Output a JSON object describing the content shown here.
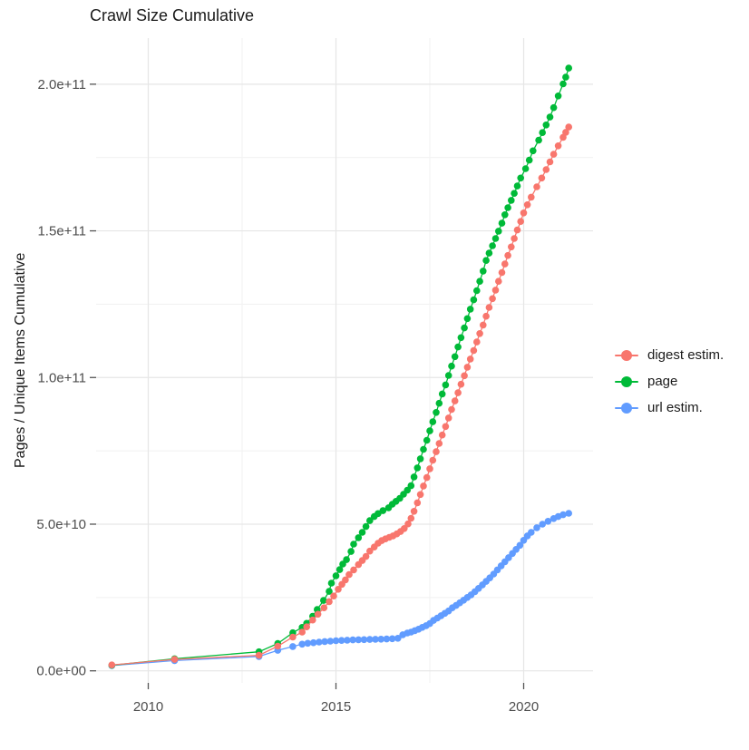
{
  "title": "Crawl Size Cumulative",
  "axes": {
    "y_title": "Pages / Unique Items Cumulative",
    "x_ticks": [
      "2010",
      "2015",
      "2020"
    ],
    "y_ticks": [
      "0.0e+00",
      "5.0e+10",
      "1.0e+11",
      "1.5e+11",
      "2.0e+11"
    ]
  },
  "legend": {
    "items": [
      {
        "label": "digest estim.",
        "color": "#F8766D"
      },
      {
        "label": "page",
        "color": "#00BA38"
      },
      {
        "label": "url estim.",
        "color": "#619CFF"
      }
    ]
  },
  "colors": {
    "digest": "#F8766D",
    "page": "#00BA38",
    "url": "#619CFF",
    "grid_major": "#e6e6e6",
    "grid_minor": "#f1f1f1",
    "tick_mark": "#555555",
    "tick_label": "#4d4d4d",
    "text": "#1a1a1a"
  },
  "chart_data": {
    "type": "line",
    "title": "Crawl Size Cumulative",
    "xlabel": "",
    "ylabel": "Pages / Unique Items Cumulative",
    "x_unit": "year",
    "value_unit": "1e9 items (pages / unique items)",
    "xlim": [
      2008.4,
      2021.9
    ],
    "ylim": [
      0,
      216000000000
    ],
    "x_major_ticks": [
      2010,
      2015,
      2020
    ],
    "x_minor_ticks": [
      2012.5,
      2017.5
    ],
    "y_major_ticks": [
      0,
      50000000000,
      100000000000,
      150000000000,
      200000000000
    ],
    "y_minor_ticks": [
      25000000000,
      75000000000,
      125000000000,
      175000000000
    ],
    "grid": "major+minor",
    "legend_position": "right",
    "series": [
      {
        "name": "digest estim.",
        "color": "#F8766D",
        "points": [
          [
            2009.03,
            2
          ],
          [
            2010.7,
            3.9
          ],
          [
            2012.95,
            5.3
          ],
          [
            2013.45,
            8.4
          ],
          [
            2013.85,
            11.5
          ],
          [
            2014.1,
            13.2
          ],
          [
            2014.22,
            15
          ],
          [
            2014.38,
            17.3
          ],
          [
            2014.52,
            19.3
          ],
          [
            2014.68,
            21.5
          ],
          [
            2014.82,
            23.6
          ],
          [
            2014.94,
            25.5
          ],
          [
            2015.06,
            27.8
          ],
          [
            2015.16,
            29.5
          ],
          [
            2015.25,
            31
          ],
          [
            2015.35,
            32.8
          ],
          [
            2015.47,
            34.4
          ],
          [
            2015.6,
            36.2
          ],
          [
            2015.7,
            37.6
          ],
          [
            2015.8,
            39
          ],
          [
            2015.9,
            40.8
          ],
          [
            2016.02,
            42.2
          ],
          [
            2016.12,
            43.5
          ],
          [
            2016.22,
            44.4
          ],
          [
            2016.32,
            45
          ],
          [
            2016.42,
            45.5
          ],
          [
            2016.52,
            46
          ],
          [
            2016.62,
            46.7
          ],
          [
            2016.72,
            47.5
          ],
          [
            2016.82,
            48.5
          ],
          [
            2016.92,
            50.1
          ],
          [
            2017,
            52
          ],
          [
            2017.08,
            54.4
          ],
          [
            2017.17,
            57.3
          ],
          [
            2017.25,
            60.1
          ],
          [
            2017.33,
            63
          ],
          [
            2017.42,
            65.9
          ],
          [
            2017.5,
            68.9
          ],
          [
            2017.58,
            71.8
          ],
          [
            2017.67,
            74.7
          ],
          [
            2017.75,
            77.5
          ],
          [
            2017.83,
            80.4
          ],
          [
            2017.92,
            83.3
          ],
          [
            2018,
            86.2
          ],
          [
            2018.08,
            89.1
          ],
          [
            2018.17,
            92
          ],
          [
            2018.25,
            94.8
          ],
          [
            2018.33,
            97.7
          ],
          [
            2018.42,
            100.6
          ],
          [
            2018.5,
            103.5
          ],
          [
            2018.58,
            106.3
          ],
          [
            2018.67,
            109.2
          ],
          [
            2018.75,
            112.1
          ],
          [
            2018.83,
            115
          ],
          [
            2018.92,
            117.9
          ],
          [
            2019,
            120.9
          ],
          [
            2019.08,
            123.9
          ],
          [
            2019.17,
            126.9
          ],
          [
            2019.25,
            129.8
          ],
          [
            2019.33,
            132.8
          ],
          [
            2019.42,
            135.8
          ],
          [
            2019.5,
            138.7
          ],
          [
            2019.58,
            141.6
          ],
          [
            2019.67,
            144.5
          ],
          [
            2019.75,
            147.4
          ],
          [
            2019.83,
            150.3
          ],
          [
            2019.92,
            153.2
          ],
          [
            2020,
            156.1
          ],
          [
            2020.1,
            158.9
          ],
          [
            2020.2,
            161.5
          ],
          [
            2020.35,
            165
          ],
          [
            2020.48,
            168
          ],
          [
            2020.6,
            170.9
          ],
          [
            2020.7,
            173.5
          ],
          [
            2020.8,
            176.1
          ],
          [
            2020.92,
            179
          ],
          [
            2021.05,
            181.9
          ],
          [
            2021.12,
            183.6
          ],
          [
            2021.2,
            185.4
          ]
        ]
      },
      {
        "name": "page",
        "color": "#00BA38",
        "points": [
          [
            2009.03,
            1.9
          ],
          [
            2010.7,
            4.1
          ],
          [
            2012.95,
            6.5
          ],
          [
            2013.45,
            9.3
          ],
          [
            2013.85,
            13
          ],
          [
            2014.1,
            14.8
          ],
          [
            2014.22,
            16.2
          ],
          [
            2014.38,
            18.6
          ],
          [
            2014.5,
            20.9
          ],
          [
            2014.67,
            24
          ],
          [
            2014.82,
            27.1
          ],
          [
            2014.88,
            29.9
          ],
          [
            2015,
            32.4
          ],
          [
            2015.1,
            34.5
          ],
          [
            2015.18,
            36.4
          ],
          [
            2015.28,
            37.9
          ],
          [
            2015.4,
            40.7
          ],
          [
            2015.47,
            43.2
          ],
          [
            2015.6,
            45.4
          ],
          [
            2015.7,
            47.2
          ],
          [
            2015.8,
            49.2
          ],
          [
            2015.9,
            51.2
          ],
          [
            2016.02,
            52.6
          ],
          [
            2016.12,
            53.6
          ],
          [
            2016.25,
            54.6
          ],
          [
            2016.4,
            55.6
          ],
          [
            2016.5,
            56.8
          ],
          [
            2016.6,
            57.8
          ],
          [
            2016.7,
            58.8
          ],
          [
            2016.8,
            60.2
          ],
          [
            2016.9,
            61.6
          ],
          [
            2017,
            63.1
          ],
          [
            2017.08,
            66.1
          ],
          [
            2017.17,
            69.2
          ],
          [
            2017.25,
            72.3
          ],
          [
            2017.33,
            75.5
          ],
          [
            2017.42,
            78.6
          ],
          [
            2017.5,
            81.8
          ],
          [
            2017.58,
            84.9
          ],
          [
            2017.67,
            88.1
          ],
          [
            2017.75,
            91.2
          ],
          [
            2017.83,
            94.4
          ],
          [
            2017.92,
            97.5
          ],
          [
            2018,
            100.7
          ],
          [
            2018.08,
            103.9
          ],
          [
            2018.17,
            107.1
          ],
          [
            2018.25,
            110.4
          ],
          [
            2018.33,
            113.6
          ],
          [
            2018.42,
            116.9
          ],
          [
            2018.5,
            120.1
          ],
          [
            2018.58,
            123.3
          ],
          [
            2018.67,
            126.5
          ],
          [
            2018.75,
            129.6
          ],
          [
            2018.83,
            132.8
          ],
          [
            2018.92,
            136.3
          ],
          [
            2019,
            139.9
          ],
          [
            2019.08,
            142.4
          ],
          [
            2019.17,
            144.9
          ],
          [
            2019.25,
            147.4
          ],
          [
            2019.33,
            149.9
          ],
          [
            2019.42,
            152.6
          ],
          [
            2019.5,
            155.5
          ],
          [
            2019.58,
            157.9
          ],
          [
            2019.67,
            160.4
          ],
          [
            2019.75,
            162.8
          ],
          [
            2019.83,
            165.3
          ],
          [
            2019.92,
            168
          ],
          [
            2020.05,
            171.2
          ],
          [
            2020.15,
            174.1
          ],
          [
            2020.25,
            177.3
          ],
          [
            2020.4,
            180.9
          ],
          [
            2020.5,
            183.5
          ],
          [
            2020.6,
            186.1
          ],
          [
            2020.7,
            188.8
          ],
          [
            2020.8,
            192
          ],
          [
            2020.92,
            196
          ],
          [
            2021.05,
            200.1
          ],
          [
            2021.12,
            202.4
          ],
          [
            2021.2,
            205.5
          ]
        ]
      },
      {
        "name": "url estim.",
        "color": "#619CFF",
        "points": [
          [
            2009.03,
            1.8
          ],
          [
            2010.7,
            3.5
          ],
          [
            2012.95,
            4.9
          ],
          [
            2013.45,
            7
          ],
          [
            2013.85,
            8.3
          ],
          [
            2014.1,
            9.1
          ],
          [
            2014.25,
            9.4
          ],
          [
            2014.4,
            9.6
          ],
          [
            2014.55,
            9.8
          ],
          [
            2014.7,
            10
          ],
          [
            2014.85,
            10.1
          ],
          [
            2015,
            10.25
          ],
          [
            2015.15,
            10.35
          ],
          [
            2015.3,
            10.45
          ],
          [
            2015.45,
            10.55
          ],
          [
            2015.6,
            10.6
          ],
          [
            2015.75,
            10.65
          ],
          [
            2015.9,
            10.7
          ],
          [
            2016.05,
            10.75
          ],
          [
            2016.2,
            10.8
          ],
          [
            2016.35,
            10.85
          ],
          [
            2016.5,
            10.95
          ],
          [
            2016.65,
            11.1
          ],
          [
            2016.78,
            12.3
          ],
          [
            2016.9,
            12.9
          ],
          [
            2017,
            13.2
          ],
          [
            2017.1,
            13.7
          ],
          [
            2017.2,
            14.2
          ],
          [
            2017.3,
            14.8
          ],
          [
            2017.4,
            15.4
          ],
          [
            2017.5,
            16.1
          ],
          [
            2017.6,
            17.2
          ],
          [
            2017.7,
            18
          ],
          [
            2017.8,
            18.8
          ],
          [
            2017.9,
            19.6
          ],
          [
            2018,
            20.4
          ],
          [
            2018.1,
            21.5
          ],
          [
            2018.2,
            22.3
          ],
          [
            2018.3,
            23.2
          ],
          [
            2018.4,
            24.1
          ],
          [
            2018.5,
            25
          ],
          [
            2018.6,
            25.9
          ],
          [
            2018.7,
            27
          ],
          [
            2018.8,
            28.1
          ],
          [
            2018.9,
            29.3
          ],
          [
            2019,
            30.5
          ],
          [
            2019.1,
            31.7
          ],
          [
            2019.2,
            33
          ],
          [
            2019.3,
            34.4
          ],
          [
            2019.4,
            35.8
          ],
          [
            2019.5,
            37.2
          ],
          [
            2019.6,
            38.6
          ],
          [
            2019.7,
            40
          ],
          [
            2019.8,
            41.4
          ],
          [
            2019.9,
            42.8
          ],
          [
            2020,
            44.5
          ],
          [
            2020.1,
            46
          ],
          [
            2020.2,
            47.2
          ],
          [
            2020.35,
            48.8
          ],
          [
            2020.5,
            50
          ],
          [
            2020.65,
            51
          ],
          [
            2020.8,
            51.9
          ],
          [
            2020.92,
            52.6
          ],
          [
            2021.05,
            53.2
          ],
          [
            2021.2,
            53.7
          ]
        ]
      }
    ]
  }
}
